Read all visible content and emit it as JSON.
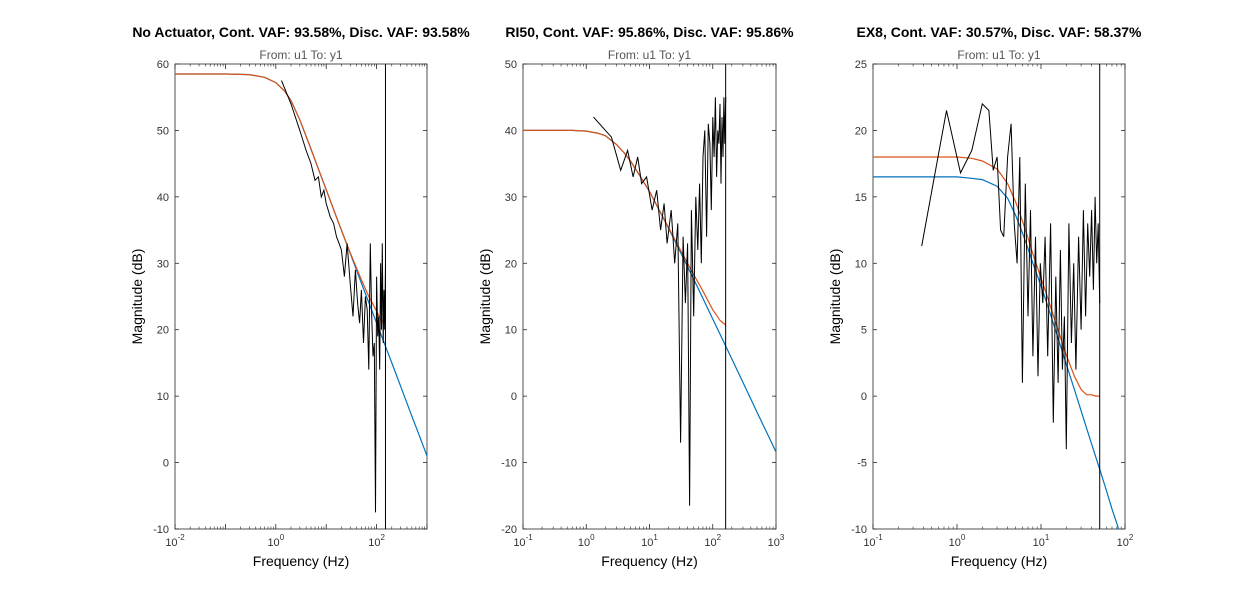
{
  "figure": {
    "colors": {
      "background": "#ffffff",
      "axes": "#262626",
      "measured": "#000000",
      "continuous_fit": "#0072BD",
      "discrete_fit": "#D95319",
      "marker_line": "#000000"
    }
  },
  "chart_data": [
    {
      "type": "line",
      "title": "No Actuator, Cont. VAF: 93.58%, Disc. VAF: 93.58%",
      "subtitle": "From: u1  To: y1",
      "xlabel": "Frequency  (Hz)",
      "ylabel": "Magnitude (dB)",
      "xscale": "log",
      "xlim": [
        0.01,
        1000
      ],
      "ylim": [
        -10,
        60
      ],
      "xtick_exponents": [
        -2,
        0,
        2
      ],
      "yticks": [
        -10,
        0,
        10,
        20,
        30,
        40,
        50,
        60
      ],
      "vline_x": 150,
      "series": [
        {
          "role": "measured",
          "color": "#000000",
          "x": [
            1.3,
            2,
            3,
            4,
            5,
            6,
            7,
            8,
            9,
            10,
            12,
            14,
            16,
            18,
            20,
            23,
            26,
            30,
            34,
            38,
            42,
            46,
            50,
            55,
            60,
            65,
            70,
            75,
            80,
            85,
            90,
            95,
            100,
            105,
            110,
            115,
            120,
            125,
            130,
            135,
            140,
            145,
            150
          ],
          "y": [
            57.5,
            54,
            50,
            47,
            45,
            42.5,
            43,
            40,
            41,
            39,
            37,
            36,
            34,
            33,
            32,
            28,
            33,
            27,
            22,
            29,
            24,
            21,
            26,
            18,
            25,
            23,
            14,
            33,
            22,
            16,
            18,
            -7.5,
            28,
            19,
            22,
            14,
            30,
            20,
            33,
            18,
            26,
            20,
            30
          ]
        },
        {
          "role": "continuous_fit",
          "color": "#0072BD",
          "x": [
            0.01,
            0.1,
            0.3,
            0.6,
            1,
            1.5,
            2,
            3,
            5,
            7,
            10,
            15,
            20,
            30,
            50,
            70,
            100,
            150,
            200,
            300,
            500,
            700,
            1000
          ],
          "y": [
            58.5,
            58.5,
            58.4,
            58.0,
            57.2,
            55.9,
            54.5,
            51.6,
            47.2,
            44.2,
            41.1,
            37.5,
            35.0,
            31.5,
            27.0,
            24.1,
            21.0,
            17.5,
            15.0,
            11.5,
            7.0,
            4.1,
            1.0
          ]
        },
        {
          "role": "discrete_fit",
          "color": "#D95319",
          "x": [
            0.01,
            0.1,
            0.3,
            0.6,
            1,
            1.5,
            2,
            3,
            5,
            7,
            10,
            15,
            20,
            30,
            50,
            70,
            100,
            120,
            140,
            150
          ],
          "y": [
            58.5,
            58.5,
            58.4,
            58.0,
            57.2,
            55.9,
            54.5,
            51.6,
            47.2,
            44.2,
            41.1,
            37.5,
            35.0,
            31.6,
            27.5,
            25.0,
            22.8,
            21.6,
            20.9,
            20.8
          ]
        }
      ]
    },
    {
      "type": "line",
      "title": "RI50, Cont. VAF: 95.86%, Disc. VAF: 95.86%",
      "subtitle": "From: u1  To: y1",
      "xlabel": "Frequency  (Hz)",
      "ylabel": "Magnitude (dB)",
      "xscale": "log",
      "xlim": [
        0.1,
        1000
      ],
      "ylim": [
        -20,
        50
      ],
      "xtick_exponents": [
        -1,
        0,
        1,
        2,
        3
      ],
      "yticks": [
        -20,
        -10,
        0,
        10,
        20,
        30,
        40,
        50
      ],
      "vline_x": 160,
      "series": [
        {
          "role": "measured",
          "color": "#000000",
          "x": [
            1.3,
            2.5,
            3.5,
            4.5,
            5.5,
            6.5,
            7.5,
            9,
            11,
            13,
            15,
            17,
            19,
            22,
            25,
            28,
            31,
            34,
            37,
            40,
            43,
            46,
            50,
            54,
            58,
            62,
            66,
            70,
            75,
            80,
            85,
            90,
            95,
            100,
            105,
            110,
            115,
            120,
            125,
            130,
            135,
            140,
            145,
            150,
            155,
            160
          ],
          "y": [
            42,
            39,
            34,
            37,
            33,
            36,
            32,
            33,
            28,
            31,
            25,
            29,
            23,
            28,
            20,
            26,
            -7,
            24,
            14,
            23,
            -16.5,
            28,
            12,
            30,
            22,
            32,
            20,
            36,
            40,
            24,
            41,
            38,
            28,
            42,
            36,
            45,
            33,
            40,
            38,
            44,
            32,
            42,
            36,
            45,
            38,
            45
          ]
        },
        {
          "role": "continuous_fit",
          "color": "#0072BD",
          "x": [
            0.1,
            0.3,
            0.6,
            1,
            1.5,
            2,
            3,
            4,
            5,
            7,
            10,
            15,
            20,
            30,
            50,
            70,
            100,
            150,
            200,
            300,
            500,
            700,
            1000
          ],
          "y": [
            40,
            40,
            40,
            39.9,
            39.6,
            39.2,
            37.9,
            36.6,
            35.4,
            33.2,
            30.8,
            27.6,
            25.3,
            21.9,
            17.6,
            14.7,
            11.6,
            8.1,
            5.6,
            2.1,
            -2.4,
            -5.3,
            -8.4
          ]
        },
        {
          "role": "discrete_fit",
          "color": "#D95319",
          "x": [
            0.1,
            0.3,
            0.6,
            1,
            1.5,
            2,
            3,
            4,
            5,
            7,
            10,
            15,
            20,
            30,
            50,
            70,
            100,
            130,
            160
          ],
          "y": [
            40,
            40,
            40,
            39.9,
            39.6,
            39.2,
            37.9,
            36.6,
            35.4,
            33.2,
            30.8,
            27.6,
            25.4,
            22.2,
            18.3,
            15.8,
            13.0,
            11.4,
            10.7
          ]
        }
      ]
    },
    {
      "type": "line",
      "title": "EX8, Cont. VAF: 30.57%, Disc. VAF: 58.37%",
      "subtitle": "From: u1  To: y1",
      "xlabel": "Frequency  (Hz)",
      "ylabel": "Magnitude (dB)",
      "xscale": "log",
      "xlim": [
        0.1,
        100
      ],
      "ylim": [
        -10,
        25
      ],
      "xtick_exponents": [
        -1,
        0,
        1,
        2
      ],
      "yticks": [
        -10,
        -5,
        0,
        5,
        10,
        15,
        20,
        25
      ],
      "vline_x": 50,
      "series": [
        {
          "role": "measured",
          "color": "#000000",
          "x": [
            0.38,
            0.75,
            1.1,
            1.5,
            2.0,
            2.4,
            2.7,
            3.0,
            3.3,
            3.6,
            4.0,
            4.4,
            4.8,
            5.2,
            5.6,
            6.0,
            6.5,
            7.0,
            7.5,
            8.0,
            8.6,
            9.2,
            9.8,
            10.5,
            11.2,
            12,
            13,
            14,
            15,
            16,
            17,
            18,
            19,
            20,
            21.5,
            23,
            24.5,
            26,
            28,
            30,
            32,
            34,
            36,
            38,
            40,
            42,
            44,
            46,
            48,
            50
          ],
          "y": [
            11.3,
            21.5,
            16.8,
            18.5,
            22,
            21.5,
            17,
            18,
            12.5,
            12,
            18,
            20.5,
            13,
            10,
            18,
            1,
            16,
            6,
            14,
            3,
            12,
            1.5,
            10,
            7,
            12,
            3,
            13,
            -2,
            9,
            1,
            11,
            2,
            6,
            -4,
            13,
            4,
            10,
            2,
            12,
            5,
            14,
            6,
            13,
            9,
            14,
            8,
            15,
            10,
            13,
            7
          ]
        },
        {
          "role": "continuous_fit",
          "color": "#0072BD",
          "x": [
            0.1,
            0.3,
            0.6,
            1,
            1.5,
            2,
            3,
            4,
            5,
            6,
            7,
            8,
            10,
            12,
            15,
            20,
            25,
            30,
            40,
            50,
            60,
            70,
            80,
            100
          ],
          "y": [
            16.5,
            16.5,
            16.5,
            16.5,
            16.4,
            16.3,
            15.8,
            14.9,
            13.6,
            12.3,
            11.1,
            10.0,
            8.3,
            6.8,
            4.9,
            2.4,
            0.5,
            -1.1,
            -3.6,
            -5.5,
            -7.1,
            -8.5,
            -9.6,
            -11.5
          ]
        },
        {
          "role": "discrete_fit",
          "color": "#D95319",
          "x": [
            0.1,
            0.3,
            0.6,
            1,
            1.5,
            2,
            3,
            4,
            5,
            6,
            7,
            8,
            10,
            12,
            15,
            20,
            25,
            30,
            35,
            40,
            45,
            50
          ],
          "y": [
            18,
            18,
            18,
            18,
            17.9,
            17.7,
            17.1,
            16.0,
            14.6,
            13.2,
            11.9,
            10.7,
            8.9,
            7.4,
            5.5,
            3.1,
            1.5,
            0.5,
            0.1,
            0.1,
            0.0,
            0.0
          ]
        }
      ]
    }
  ]
}
